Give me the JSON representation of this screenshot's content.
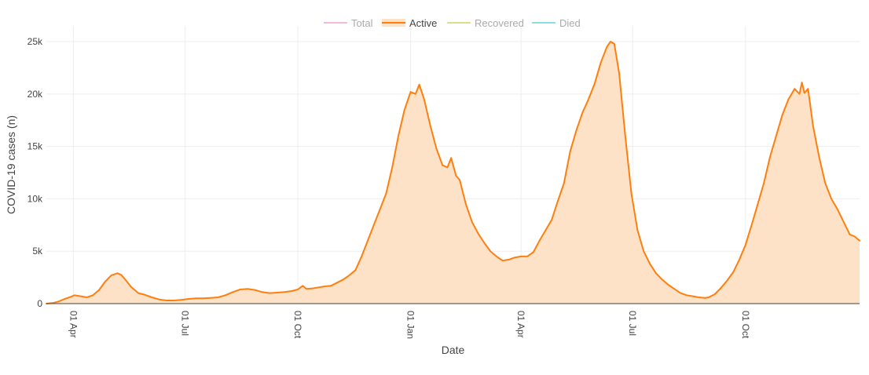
{
  "chart_data": {
    "type": "area",
    "xlabel": "Date",
    "ylabel": "COVID-19 cases (n)",
    "x_range": [
      "2020-03-10",
      "2022-11-30"
    ],
    "ylim": [
      0,
      26500
    ],
    "grid": true,
    "legend_placement": "top-center",
    "x_ticks": [
      {
        "date": "2020-04-01",
        "label": "01 Apr"
      },
      {
        "date": "2020-07-01",
        "label": "01 Jul"
      },
      {
        "date": "2020-10-01",
        "label": "01 Oct"
      },
      {
        "date": "2021-01-01",
        "label": "01 Jan"
      },
      {
        "date": "2021-04-01",
        "label": "01 Apr"
      },
      {
        "date": "2021-07-01",
        "label": "01 Jul"
      },
      {
        "date": "2021-10-01",
        "label": "01 Oct"
      }
    ],
    "y_ticks": [
      {
        "value": 0,
        "label": "0"
      },
      {
        "value": 5000,
        "label": "5k"
      },
      {
        "value": 10000,
        "label": "10k"
      },
      {
        "value": 15000,
        "label": "15k"
      },
      {
        "value": 20000,
        "label": "20k"
      },
      {
        "value": 25000,
        "label": "25k"
      }
    ],
    "legend": [
      {
        "name": "Total",
        "color": "#e377c2",
        "active": false
      },
      {
        "name": "Active",
        "color": "#ff7f0e",
        "active": true
      },
      {
        "name": "Recovered",
        "color": "#bcbd22",
        "active": false
      },
      {
        "name": "Died",
        "color": "#17becf",
        "active": false
      }
    ],
    "series": [
      {
        "name": "Active",
        "color": "#ff7f0e",
        "fill": "#fde2c8",
        "points": [
          [
            "2020-03-10",
            0
          ],
          [
            "2020-03-15",
            50
          ],
          [
            "2020-03-20",
            200
          ],
          [
            "2020-03-25",
            450
          ],
          [
            "2020-03-30",
            650
          ],
          [
            "2020-04-02",
            800
          ],
          [
            "2020-04-07",
            700
          ],
          [
            "2020-04-12",
            600
          ],
          [
            "2020-04-17",
            800
          ],
          [
            "2020-04-22",
            1300
          ],
          [
            "2020-04-27",
            2100
          ],
          [
            "2020-05-02",
            2700
          ],
          [
            "2020-05-07",
            2900
          ],
          [
            "2020-05-10",
            2750
          ],
          [
            "2020-05-14",
            2200
          ],
          [
            "2020-05-18",
            1600
          ],
          [
            "2020-05-24",
            1000
          ],
          [
            "2020-05-29",
            850
          ],
          [
            "2020-06-04",
            600
          ],
          [
            "2020-06-10",
            400
          ],
          [
            "2020-06-16",
            300
          ],
          [
            "2020-06-22",
            300
          ],
          [
            "2020-06-28",
            350
          ],
          [
            "2020-07-04",
            450
          ],
          [
            "2020-07-10",
            500
          ],
          [
            "2020-07-16",
            500
          ],
          [
            "2020-07-22",
            550
          ],
          [
            "2020-07-28",
            600
          ],
          [
            "2020-08-03",
            800
          ],
          [
            "2020-08-09",
            1100
          ],
          [
            "2020-08-15",
            1350
          ],
          [
            "2020-08-21",
            1400
          ],
          [
            "2020-08-27",
            1300
          ],
          [
            "2020-09-02",
            1100
          ],
          [
            "2020-09-08",
            1000
          ],
          [
            "2020-09-14",
            1050
          ],
          [
            "2020-09-20",
            1100
          ],
          [
            "2020-09-26",
            1200
          ],
          [
            "2020-10-01",
            1350
          ],
          [
            "2020-10-05",
            1700
          ],
          [
            "2020-10-08",
            1400
          ],
          [
            "2020-10-13",
            1450
          ],
          [
            "2020-10-18",
            1550
          ],
          [
            "2020-10-23",
            1650
          ],
          [
            "2020-10-28",
            1700
          ],
          [
            "2020-11-02",
            2000
          ],
          [
            "2020-11-07",
            2300
          ],
          [
            "2020-11-12",
            2700
          ],
          [
            "2020-11-17",
            3200
          ],
          [
            "2020-11-22",
            4500
          ],
          [
            "2020-11-27",
            6000
          ],
          [
            "2020-12-02",
            7500
          ],
          [
            "2020-12-07",
            9000
          ],
          [
            "2020-12-12",
            10500
          ],
          [
            "2020-12-17",
            13000
          ],
          [
            "2020-12-22",
            16000
          ],
          [
            "2020-12-27",
            18500
          ],
          [
            "2021-01-01",
            20200
          ],
          [
            "2021-01-05",
            20000
          ],
          [
            "2021-01-08",
            20900
          ],
          [
            "2021-01-12",
            19500
          ],
          [
            "2021-01-17",
            17000
          ],
          [
            "2021-01-22",
            14800
          ],
          [
            "2021-01-27",
            13200
          ],
          [
            "2021-01-31",
            13000
          ],
          [
            "2021-02-03",
            13900
          ],
          [
            "2021-02-07",
            12200
          ],
          [
            "2021-02-10",
            11800
          ],
          [
            "2021-02-15",
            9500
          ],
          [
            "2021-02-20",
            7800
          ],
          [
            "2021-02-25",
            6700
          ],
          [
            "2021-03-02",
            5800
          ],
          [
            "2021-03-07",
            5000
          ],
          [
            "2021-03-12",
            4500
          ],
          [
            "2021-03-17",
            4100
          ],
          [
            "2021-03-22",
            4200
          ],
          [
            "2021-03-27",
            4400
          ],
          [
            "2021-04-01",
            4500
          ],
          [
            "2021-04-06",
            4500
          ],
          [
            "2021-04-11",
            4900
          ],
          [
            "2021-04-16",
            6000
          ],
          [
            "2021-04-21",
            7000
          ],
          [
            "2021-04-26",
            8000
          ],
          [
            "2021-05-01",
            9800
          ],
          [
            "2021-05-06",
            11500
          ],
          [
            "2021-05-11",
            14500
          ],
          [
            "2021-05-16",
            16500
          ],
          [
            "2021-05-21",
            18200
          ],
          [
            "2021-05-26",
            19500
          ],
          [
            "2021-05-31",
            21000
          ],
          [
            "2021-06-05",
            23000
          ],
          [
            "2021-06-10",
            24500
          ],
          [
            "2021-06-13",
            25000
          ],
          [
            "2021-06-16",
            24800
          ],
          [
            "2021-06-20",
            22000
          ],
          [
            "2021-06-25",
            16000
          ],
          [
            "2021-06-30",
            10500
          ],
          [
            "2021-07-05",
            7000
          ],
          [
            "2021-07-10",
            5000
          ],
          [
            "2021-07-15",
            3800
          ],
          [
            "2021-07-20",
            2900
          ],
          [
            "2021-07-25",
            2300
          ],
          [
            "2021-07-30",
            1800
          ],
          [
            "2021-08-04",
            1400
          ],
          [
            "2021-08-09",
            1000
          ],
          [
            "2021-08-14",
            800
          ],
          [
            "2021-08-19",
            700
          ],
          [
            "2021-08-24",
            600
          ],
          [
            "2021-08-29",
            550
          ],
          [
            "2021-09-01",
            600
          ],
          [
            "2021-09-06",
            900
          ],
          [
            "2021-09-11",
            1500
          ],
          [
            "2021-09-16",
            2200
          ],
          [
            "2021-09-21",
            3000
          ],
          [
            "2021-09-26",
            4200
          ],
          [
            "2021-10-01",
            5600
          ],
          [
            "2021-10-06",
            7500
          ],
          [
            "2021-10-11",
            9500
          ],
          [
            "2021-10-16",
            11500
          ],
          [
            "2021-10-21",
            14000
          ],
          [
            "2021-10-26",
            16000
          ],
          [
            "2021-10-31",
            18000
          ],
          [
            "2021-11-05",
            19500
          ],
          [
            "2021-11-10",
            20500
          ],
          [
            "2021-11-14",
            20000
          ],
          [
            "2021-11-16",
            21100
          ],
          [
            "2021-11-18",
            20100
          ],
          [
            "2021-11-21",
            20500
          ],
          [
            "2021-11-25",
            17000
          ],
          [
            "2021-11-30",
            14000
          ],
          [
            "2021-12-05",
            11500
          ],
          [
            "2021-12-10",
            10000
          ],
          [
            "2021-12-15",
            9000
          ],
          [
            "2021-12-20",
            7800
          ],
          [
            "2021-12-25",
            6600
          ],
          [
            "2021-12-29",
            6400
          ],
          [
            "2022-01-02",
            6000
          ]
        ]
      }
    ]
  }
}
